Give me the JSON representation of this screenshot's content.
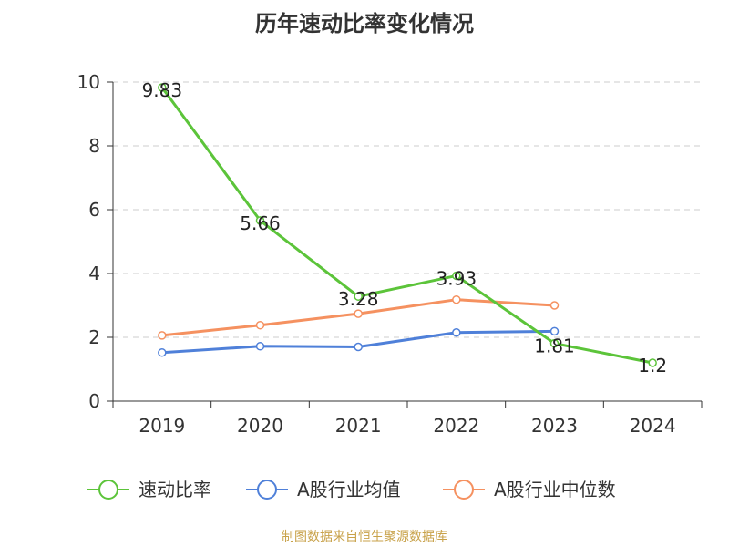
{
  "chart_data": {
    "type": "line",
    "title": "历年速动比率变化情况",
    "source": "制图数据来自恒生聚源数据库",
    "categories": [
      "2019",
      "2020",
      "2021",
      "2022",
      "2023",
      "2024"
    ],
    "ylim": [
      0,
      10
    ],
    "yticks": [
      0,
      2,
      4,
      6,
      8,
      10
    ],
    "grid": true,
    "legend_position": "bottom",
    "series": [
      {
        "name": "速动比率",
        "color": "#5cc43a",
        "values": [
          9.83,
          5.66,
          3.28,
          3.93,
          1.81,
          1.2
        ],
        "labels": [
          "9.83",
          "5.66",
          "3.28",
          "3.93",
          "1.81",
          "1.2"
        ]
      },
      {
        "name": "A股行业均值",
        "color": "#4f80d9",
        "values": [
          1.52,
          1.72,
          1.7,
          2.15,
          2.19,
          null
        ]
      },
      {
        "name": "A股行业中位数",
        "color": "#f59160",
        "values": [
          2.06,
          2.38,
          2.74,
          3.18,
          3.0,
          null
        ]
      }
    ],
    "colors": {
      "axis": "#333333",
      "grid": "#cccccc",
      "source_text": "#c8a24a",
      "title_text": "#333333"
    }
  }
}
